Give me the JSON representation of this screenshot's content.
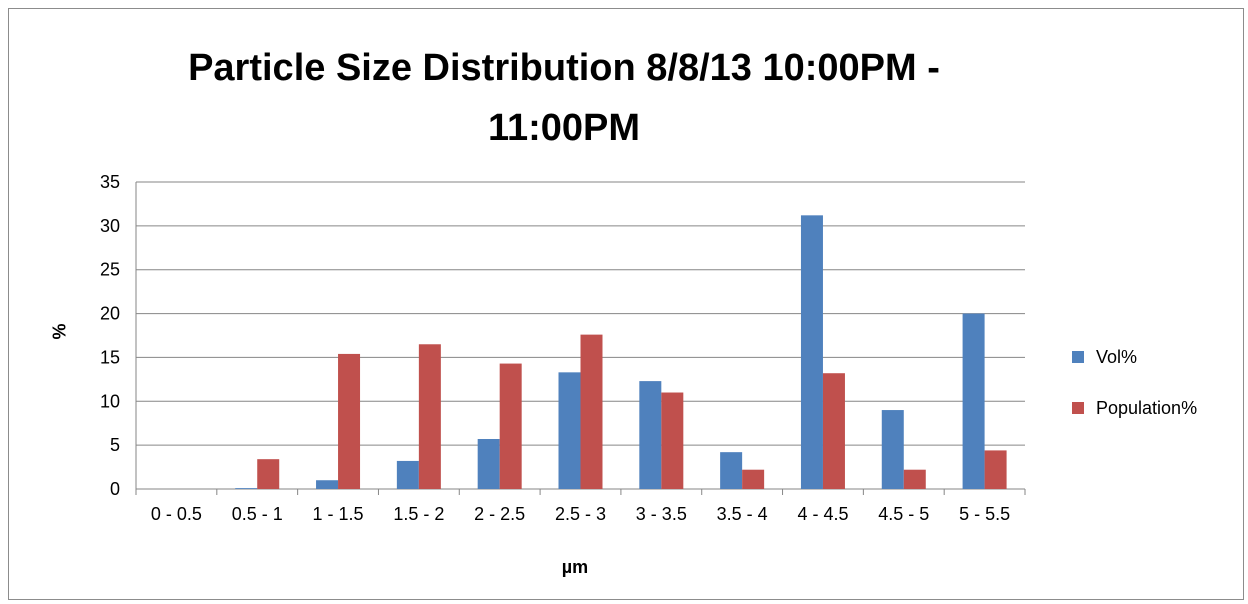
{
  "chart_data": {
    "type": "bar",
    "title_lines": [
      "Particle Size Distribution 8/8/13 10:00PM -",
      "11:00PM"
    ],
    "xlabel": "µm",
    "ylabel": "%",
    "ylim": [
      0,
      35
    ],
    "yticks": [
      0,
      5,
      10,
      15,
      20,
      25,
      30,
      35
    ],
    "grid": true,
    "legend_position": "right",
    "categories": [
      "0 - 0.5",
      "0.5 - 1",
      "1 - 1.5",
      "1.5 - 2",
      "2 - 2.5",
      "2.5 - 3",
      "3 - 3.5",
      "3.5 - 4",
      "4 - 4.5",
      "4.5 - 5",
      "5 - 5.5"
    ],
    "series": [
      {
        "name": "Vol%",
        "color": "#4f81bd",
        "values": [
          0,
          0.1,
          1.0,
          3.2,
          5.7,
          13.3,
          12.3,
          4.2,
          31.2,
          9.0,
          20.0
        ]
      },
      {
        "name": "Population%",
        "color": "#c0504d",
        "values": [
          0,
          3.4,
          15.4,
          16.5,
          14.3,
          17.6,
          11.0,
          2.2,
          13.2,
          2.2,
          4.4
        ]
      }
    ]
  }
}
